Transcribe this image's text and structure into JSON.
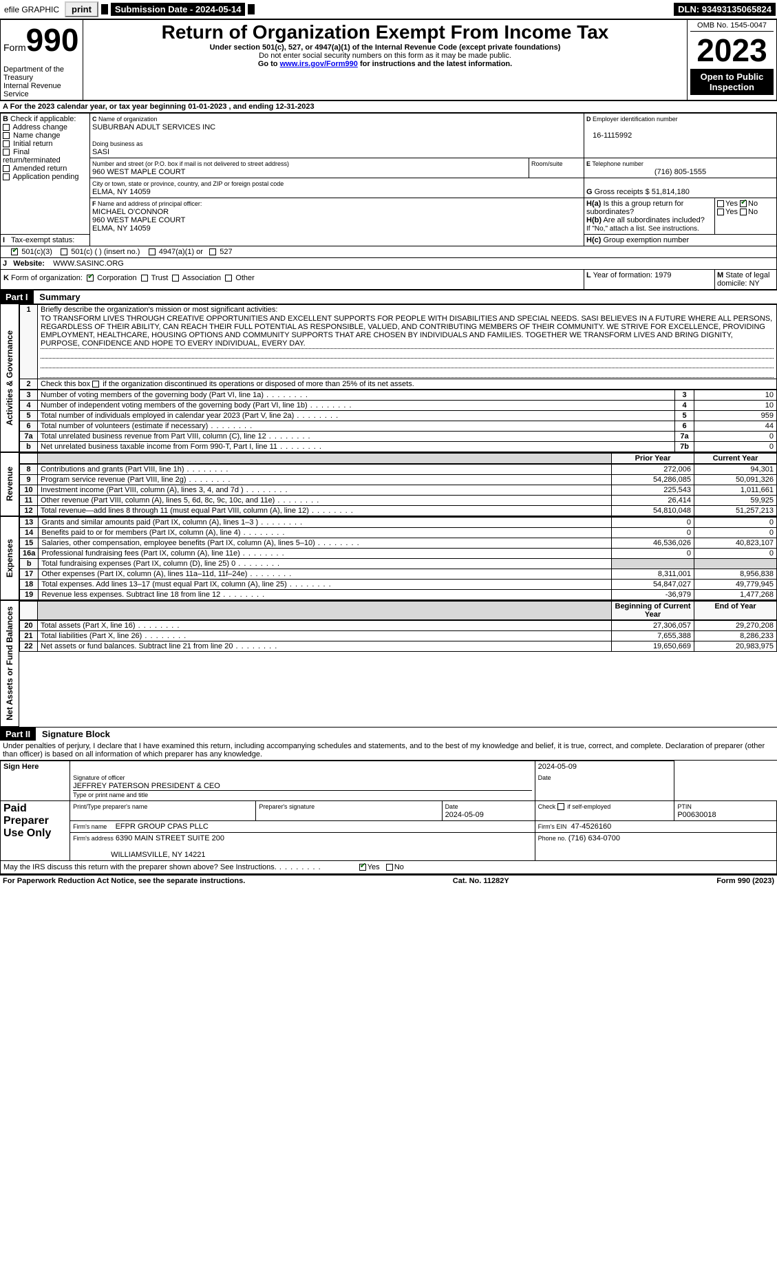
{
  "topbar": {
    "efile": "efile GRAPHIC",
    "print": "print",
    "submission": "Submission Date - 2024-05-14",
    "dln": "DLN: 93493135065824"
  },
  "header": {
    "form_prefix": "Form",
    "form_no": "990",
    "title": "Return of Organization Exempt From Income Tax",
    "subtitle": "Under section 501(c), 527, or 4947(a)(1) of the Internal Revenue Code (except private foundations)",
    "warn": "Do not enter social security numbers on this form as it may be made public.",
    "goto_prefix": "Go to ",
    "goto_link": "www.irs.gov/Form990",
    "goto_suffix": " for instructions and the latest information.",
    "dept": "Department of the Treasury\nInternal Revenue Service",
    "omb": "OMB No. 1545-0047",
    "year": "2023",
    "open": "Open to Public Inspection"
  },
  "secA": {
    "line": "For the 2023 calendar year, or tax year beginning 01-01-2023   , and ending 12-31-2023",
    "b_label": "Check if applicable:",
    "b_opts": [
      "Address change",
      "Name change",
      "Initial return",
      "Final return/terminated",
      "Amended return",
      "Application pending"
    ],
    "c_label": "Name of organization",
    "c_name": "SUBURBAN ADULT SERVICES INC",
    "dba_label": "Doing business as",
    "dba": "SASI",
    "street_label": "Number and street (or P.O. box if mail is not delivered to street address)",
    "room_label": "Room/suite",
    "street": "960 WEST MAPLE COURT",
    "city_label": "City or town, state or province, country, and ZIP or foreign postal code",
    "city": "ELMA, NY  14059",
    "d_label": "Employer identification number",
    "ein": "16-1115992",
    "e_label": "Telephone number",
    "phone": "(716) 805-1555",
    "g_label": "Gross receipts $",
    "g_val": "51,814,180",
    "f_label": "Name and address of principal officer:",
    "f_name": "MICHAEL O'CONNOR",
    "f_street": "960 WEST MAPLE COURT",
    "f_city": "ELMA, NY  14059",
    "ha_label": "Is this a group return for subordinates?",
    "hb_label": "Are all subordinates included?",
    "hb_note": "If \"No,\" attach a list. See instructions.",
    "hc_label": "Group exemption number",
    "yes": "Yes",
    "no": "No",
    "i_label": "Tax-exempt status:",
    "i_501c3": "501(c)(3)",
    "i_501c": "501(c) (  ) (insert no.)",
    "i_4947": "4947(a)(1) or",
    "i_527": "527",
    "j_label": "Website:",
    "j_val": "WWW.SASINC.ORG",
    "k_label": "Form of organization:",
    "k_corp": "Corporation",
    "k_trust": "Trust",
    "k_assoc": "Association",
    "k_other": "Other",
    "l_label": "Year of formation:",
    "l_val": "1979",
    "m_label": "State of legal domicile:",
    "m_val": "NY"
  },
  "part1": {
    "hdr": "Part I",
    "title": "Summary",
    "side_gov": "Activities & Governance",
    "side_rev": "Revenue",
    "side_exp": "Expenses",
    "side_net": "Net Assets or Fund Balances",
    "l1": "Briefly describe the organization's mission or most significant activities:",
    "mission": "TO TRANSFORM LIVES THROUGH CREATIVE OPPORTUNITIES AND EXCELLENT SUPPORTS FOR PEOPLE WITH DISABILITIES AND SPECIAL NEEDS. SASI BELIEVES IN A FUTURE WHERE ALL PERSONS, REGARDLESS OF THEIR ABILITY, CAN REACH THEIR FULL POTENTIAL AS RESPONSIBLE, VALUED, AND CONTRIBUTING MEMBERS OF THEIR COMMUNITY. WE STRIVE FOR EXCELLENCE, PROVIDING EMPLOYMENT, HEALTHCARE, HOUSING OPTIONS AND COMMUNITY SUPPORTS THAT ARE CHOSEN BY INDIVIDUALS AND FAMILIES. TOGETHER WE TRANSFORM LIVES AND BRING DIGNITY, PURPOSE, CONFIDENCE AND HOPE TO EVERY INDIVIDUAL, EVERY DAY.",
    "l2": "Check this box        if the organization discontinued its operations or disposed of more than 25% of its net assets.",
    "rows_gov": [
      {
        "n": "3",
        "d": "Number of voting members of the governing body (Part VI, line 1a)",
        "k": "3",
        "v": "10"
      },
      {
        "n": "4",
        "d": "Number of independent voting members of the governing body (Part VI, line 1b)",
        "k": "4",
        "v": "10"
      },
      {
        "n": "5",
        "d": "Total number of individuals employed in calendar year 2023 (Part V, line 2a)",
        "k": "5",
        "v": "959"
      },
      {
        "n": "6",
        "d": "Total number of volunteers (estimate if necessary)",
        "k": "6",
        "v": "44"
      },
      {
        "n": "7a",
        "d": "Total unrelated business revenue from Part VIII, column (C), line 12",
        "k": "7a",
        "v": "0"
      },
      {
        "n": "b",
        "d": "Net unrelated business taxable income from Form 990-T, Part I, line 11",
        "k": "7b",
        "v": "0"
      }
    ],
    "hdr_prior": "Prior Year",
    "hdr_curr": "Current Year",
    "rows_rev": [
      {
        "n": "8",
        "d": "Contributions and grants (Part VIII, line 1h)",
        "p": "272,006",
        "c": "94,301"
      },
      {
        "n": "9",
        "d": "Program service revenue (Part VIII, line 2g)",
        "p": "54,286,085",
        "c": "50,091,326"
      },
      {
        "n": "10",
        "d": "Investment income (Part VIII, column (A), lines 3, 4, and 7d )",
        "p": "225,543",
        "c": "1,011,661"
      },
      {
        "n": "11",
        "d": "Other revenue (Part VIII, column (A), lines 5, 6d, 8c, 9c, 10c, and 11e)",
        "p": "26,414",
        "c": "59,925"
      },
      {
        "n": "12",
        "d": "Total revenue—add lines 8 through 11 (must equal Part VIII, column (A), line 12)",
        "p": "54,810,048",
        "c": "51,257,213"
      }
    ],
    "rows_exp": [
      {
        "n": "13",
        "d": "Grants and similar amounts paid (Part IX, column (A), lines 1–3 )",
        "p": "0",
        "c": "0"
      },
      {
        "n": "14",
        "d": "Benefits paid to or for members (Part IX, column (A), line 4)",
        "p": "0",
        "c": "0"
      },
      {
        "n": "15",
        "d": "Salaries, other compensation, employee benefits (Part IX, column (A), lines 5–10)",
        "p": "46,536,026",
        "c": "40,823,107"
      },
      {
        "n": "16a",
        "d": "Professional fundraising fees (Part IX, column (A), line 11e)",
        "p": "0",
        "c": "0"
      },
      {
        "n": "b",
        "d": "Total fundraising expenses (Part IX, column (D), line 25) 0",
        "p": "__shade__",
        "c": "__shade__"
      },
      {
        "n": "17",
        "d": "Other expenses (Part IX, column (A), lines 11a–11d, 11f–24e)",
        "p": "8,311,001",
        "c": "8,956,838"
      },
      {
        "n": "18",
        "d": "Total expenses. Add lines 13–17 (must equal Part IX, column (A), line 25)",
        "p": "54,847,027",
        "c": "49,779,945"
      },
      {
        "n": "19",
        "d": "Revenue less expenses. Subtract line 18 from line 12",
        "p": "-36,979",
        "c": "1,477,268"
      }
    ],
    "hdr_beg": "Beginning of Current Year",
    "hdr_end": "End of Year",
    "rows_net": [
      {
        "n": "20",
        "d": "Total assets (Part X, line 16)",
        "p": "27,306,057",
        "c": "29,270,208"
      },
      {
        "n": "21",
        "d": "Total liabilities (Part X, line 26)",
        "p": "7,655,388",
        "c": "8,286,233"
      },
      {
        "n": "22",
        "d": "Net assets or fund balances. Subtract line 21 from line 20",
        "p": "19,650,669",
        "c": "20,983,975"
      }
    ]
  },
  "part2": {
    "hdr": "Part II",
    "title": "Signature Block",
    "decl": "Under penalties of perjury, I declare that I have examined this return, including accompanying schedules and statements, and to the best of my knowledge and belief, it is true, correct, and complete. Declaration of preparer (other than officer) is based on all information of which preparer has any knowledge.",
    "sign_here": "Sign Here",
    "sig_officer": "Signature of officer",
    "officer": "JEFFREY PATERSON  PRESIDENT & CEO",
    "type_name": "Type or print name and title",
    "date_label": "Date",
    "date1": "2024-05-09",
    "paid": "Paid Preparer Use Only",
    "pt_name_label": "Print/Type preparer's name",
    "pt_sig_label": "Preparer's signature",
    "date2": "2024-05-09",
    "check_self": "Check         if self-employed",
    "ptin_label": "PTIN",
    "ptin": "P00630018",
    "firm_name_label": "Firm's name",
    "firm_name": "EFPR GROUP CPAS PLLC",
    "firm_ein_label": "Firm's EIN",
    "firm_ein": "47-4526160",
    "firm_addr_label": "Firm's address",
    "firm_addr1": "6390 MAIN STREET SUITE 200",
    "firm_addr2": "WILLIAMSVILLE, NY  14221",
    "firm_phone_label": "Phone no.",
    "firm_phone": "(716) 634-0700",
    "discuss": "May the IRS discuss this return with the preparer shown above? See Instructions.",
    "yes": "Yes",
    "no": "No"
  },
  "footer": {
    "pra": "For Paperwork Reduction Act Notice, see the separate instructions.",
    "cat": "Cat. No. 11282Y",
    "form": "Form 990 (2023)"
  }
}
